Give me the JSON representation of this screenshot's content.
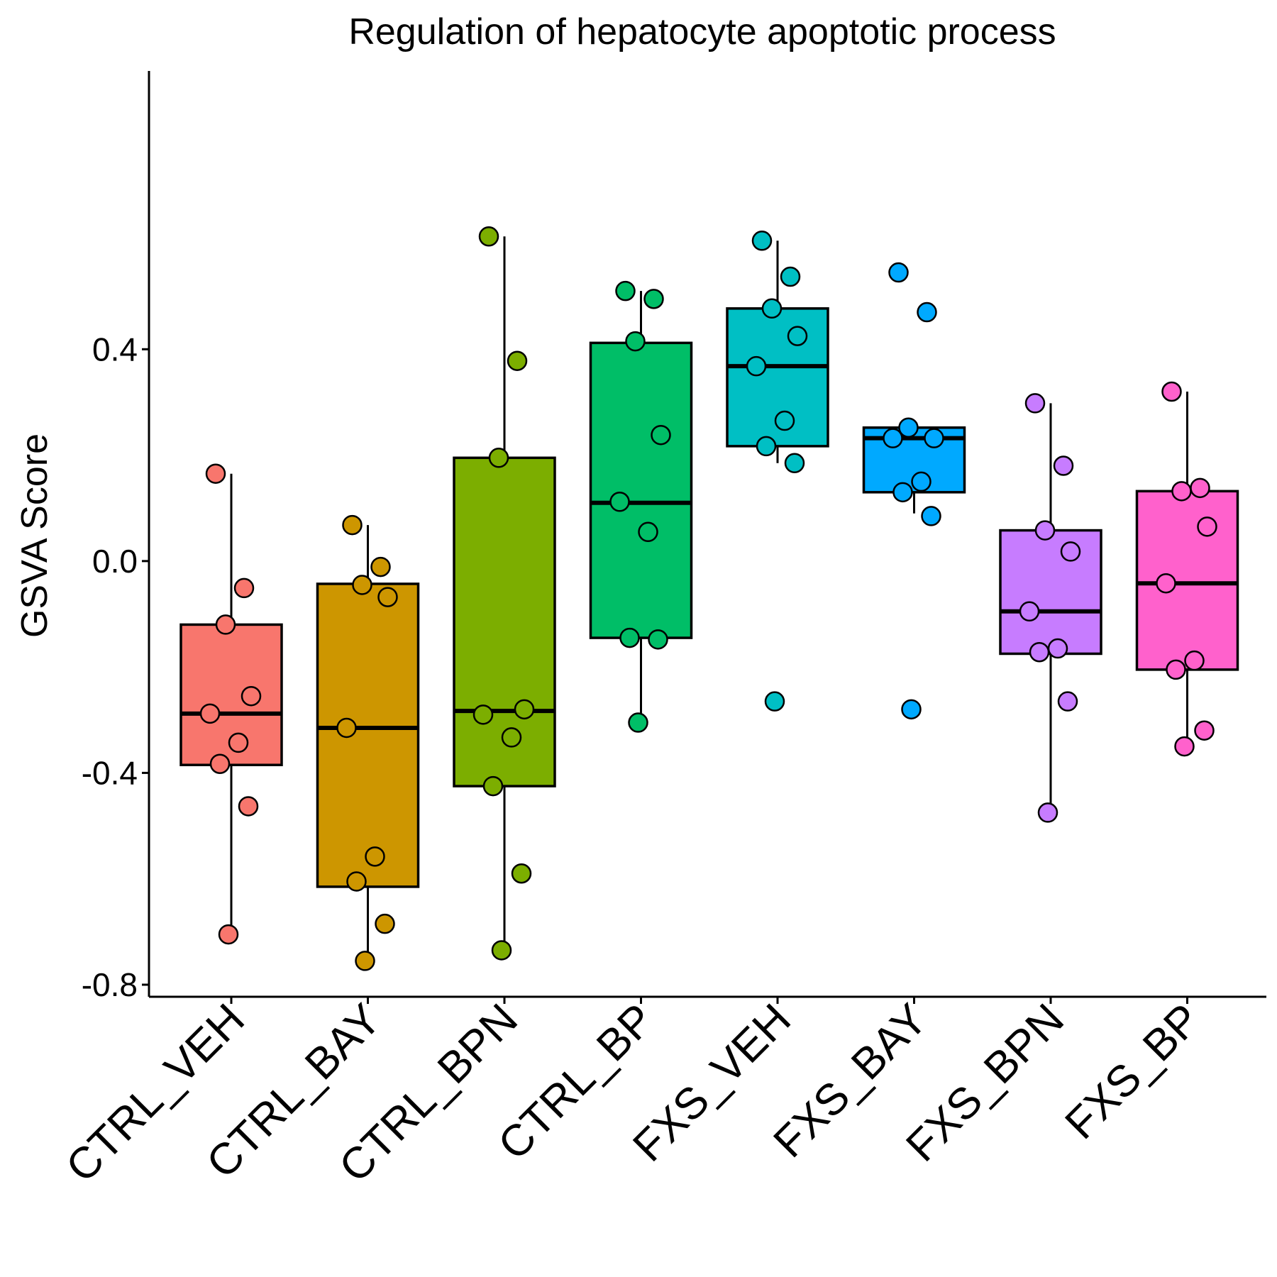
{
  "chart_data": {
    "type": "box",
    "title": "Regulation of hepatocyte apoptotic process",
    "xlabel": "",
    "ylabel": "GSVA Score",
    "ylim": [
      -0.83,
      0.67
    ],
    "yticks": [
      -0.8,
      -0.4,
      0.0,
      0.4
    ],
    "ytick_labels": [
      "-0.8",
      "-0.4",
      "0.0",
      "0.4"
    ],
    "grid": false,
    "legend": "none",
    "categories": [
      "CTRL_VEH",
      "CTRL_BAY",
      "CTRL_BPN",
      "CTRL_BP",
      "FXS_VEH",
      "FXS_BAY",
      "FXS_BPN",
      "FXS_BP"
    ],
    "series": [
      {
        "color": "#F8766D",
        "box": {
          "q1": -0.385,
          "median": -0.288,
          "q3": -0.12,
          "whisker_low": -0.705,
          "whisker_high": 0.165
        },
        "points": [
          0.165,
          -0.051,
          -0.12,
          -0.255,
          -0.288,
          -0.343,
          -0.383,
          -0.463,
          -0.705
        ]
      },
      {
        "color": "#CD9600",
        "box": {
          "q1": -0.615,
          "median": -0.315,
          "q3": -0.043,
          "whisker_low": -0.755,
          "whisker_high": 0.068
        },
        "points": [
          0.068,
          -0.011,
          -0.045,
          -0.068,
          -0.315,
          -0.558,
          -0.605,
          -0.685,
          -0.755
        ]
      },
      {
        "color": "#7CAE00",
        "box": {
          "q1": -0.425,
          "median": -0.283,
          "q3": 0.195,
          "whisker_low": -0.735,
          "whisker_high": 0.613
        },
        "points": [
          0.613,
          0.378,
          0.195,
          -0.28,
          -0.29,
          -0.333,
          -0.425,
          -0.59,
          -0.735
        ]
      },
      {
        "color": "#00BE67",
        "box": {
          "q1": -0.145,
          "median": 0.11,
          "q3": 0.412,
          "whisker_low": -0.305,
          "whisker_high": 0.51
        },
        "points": [
          0.51,
          0.495,
          0.415,
          0.238,
          0.112,
          0.055,
          -0.145,
          -0.148,
          -0.305
        ]
      },
      {
        "color": "#00BFC4",
        "box": {
          "q1": 0.217,
          "median": 0.368,
          "q3": 0.477,
          "whisker_low": 0.185,
          "whisker_high": 0.605
        },
        "points": [
          0.605,
          0.537,
          0.477,
          0.425,
          0.368,
          0.265,
          0.217,
          0.185,
          -0.265
        ]
      },
      {
        "color": "#00A9FF",
        "box": {
          "q1": 0.13,
          "median": 0.232,
          "q3": 0.252,
          "whisker_low": 0.09,
          "whisker_high": 0.252
        },
        "points": [
          0.545,
          0.47,
          0.252,
          0.232,
          0.232,
          0.15,
          0.13,
          0.085,
          -0.28
        ]
      },
      {
        "color": "#C77CFF",
        "box": {
          "q1": -0.175,
          "median": -0.095,
          "q3": 0.058,
          "whisker_low": -0.475,
          "whisker_high": 0.298
        },
        "points": [
          0.298,
          0.18,
          0.058,
          0.018,
          -0.095,
          -0.165,
          -0.172,
          -0.265,
          -0.475
        ]
      },
      {
        "color": "#FF61CC",
        "box": {
          "q1": -0.205,
          "median": -0.042,
          "q3": 0.132,
          "whisker_low": -0.35,
          "whisker_high": 0.32
        },
        "points": [
          0.32,
          0.138,
          0.132,
          0.065,
          -0.042,
          -0.188,
          -0.205,
          -0.32,
          -0.35
        ]
      }
    ]
  }
}
